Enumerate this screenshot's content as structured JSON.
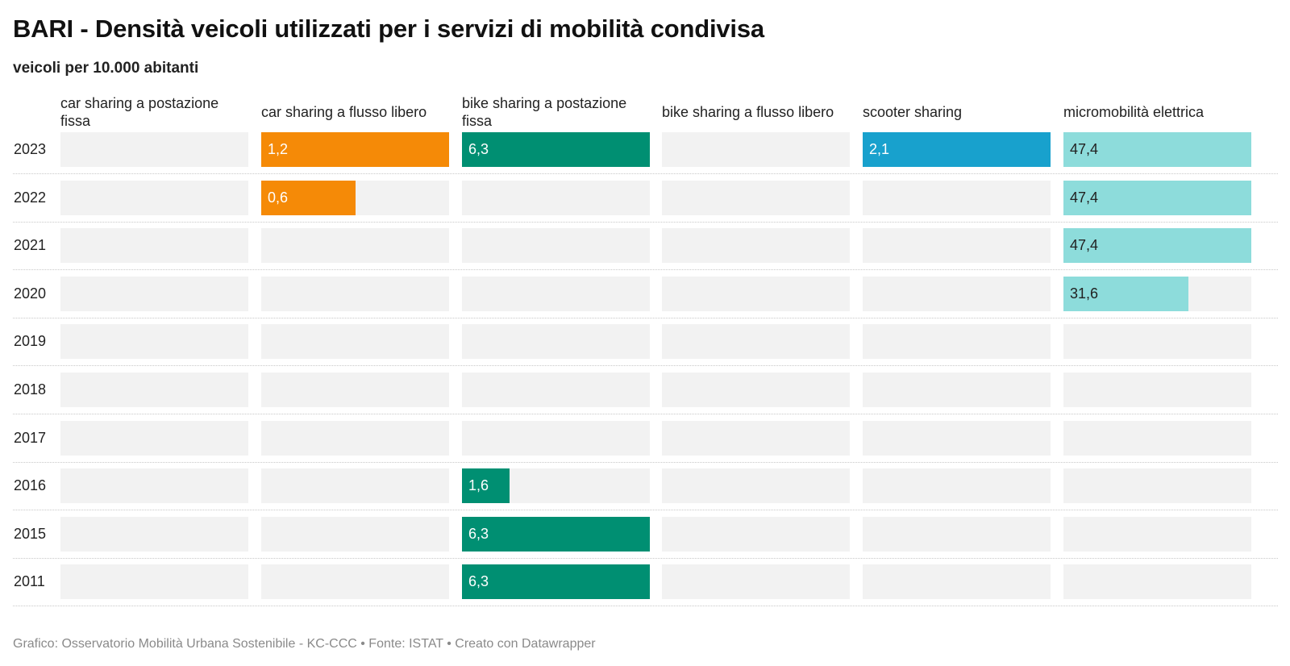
{
  "header": {
    "title": "BARI - Densità veicoli utilizzati per i servizi di mobilità condivisa",
    "subtitle": "veicoli per 10.000 abitanti"
  },
  "footer": {
    "text": "Grafico: Osservatorio Mobilità Urbana Sostenibile - KC-CCC • Fonte: ISTAT • Creato con Datawrapper"
  },
  "chart_data": {
    "type": "bar",
    "layout": "small-multiples-horizontal",
    "title": "BARI - Densità veicoli utilizzati per i servizi di mobilità condivisa",
    "subtitle": "veicoli per 10.000 abitanti",
    "categories": [
      "2023",
      "2022",
      "2021",
      "2020",
      "2019",
      "2018",
      "2017",
      "2016",
      "2015",
      "2011"
    ],
    "series": [
      {
        "name": "car sharing a postazione fissa",
        "color": "#9e9e9e",
        "value_color": "#ffffff",
        "xlim": [
          0,
          1.2
        ],
        "values": [
          null,
          null,
          null,
          null,
          null,
          null,
          null,
          null,
          null,
          null
        ],
        "labels": [
          "",
          "",
          "",
          "",
          "",
          "",
          "",
          "",
          "",
          ""
        ]
      },
      {
        "name": "car sharing a flusso libero",
        "color": "#f58a07",
        "value_color": "#ffffff",
        "xlim": [
          0,
          1.2
        ],
        "values": [
          1.2,
          0.6,
          null,
          null,
          null,
          null,
          null,
          null,
          null,
          null
        ],
        "labels": [
          "1,2",
          "0,6",
          "",
          "",
          "",
          "",
          "",
          "",
          "",
          ""
        ]
      },
      {
        "name": "bike sharing a postazione fissa",
        "color": "#008f72",
        "value_color": "#ffffff",
        "xlim": [
          0,
          6.3
        ],
        "values": [
          6.3,
          null,
          null,
          null,
          null,
          null,
          null,
          1.6,
          6.3,
          6.3
        ],
        "labels": [
          "6,3",
          "",
          "",
          "",
          "",
          "",
          "",
          "1,6",
          "6,3",
          "6,3"
        ]
      },
      {
        "name": "bike sharing a flusso libero",
        "color": "#9e9e9e",
        "value_color": "#ffffff",
        "xlim": [
          0,
          1
        ],
        "values": [
          null,
          null,
          null,
          null,
          null,
          null,
          null,
          null,
          null,
          null
        ],
        "labels": [
          "",
          "",
          "",
          "",
          "",
          "",
          "",
          "",
          "",
          ""
        ]
      },
      {
        "name": "scooter sharing",
        "color": "#18a1cd",
        "value_color": "#ffffff",
        "xlim": [
          0,
          2.1
        ],
        "values": [
          2.1,
          null,
          null,
          null,
          null,
          null,
          null,
          null,
          null,
          null
        ],
        "labels": [
          "2,1",
          "",
          "",
          "",
          "",
          "",
          "",
          "",
          "",
          ""
        ]
      },
      {
        "name": "micromobilità elettrica",
        "color": "#8ddcdb",
        "value_color": "#222222",
        "xlim": [
          0,
          47.4
        ],
        "values": [
          47.4,
          47.4,
          47.4,
          31.6,
          null,
          null,
          null,
          null,
          null,
          null
        ],
        "labels": [
          "47,4",
          "47,4",
          "47,4",
          "31,6",
          "",
          "",
          "",
          "",
          "",
          ""
        ]
      }
    ],
    "grid": false,
    "legend": "none"
  }
}
